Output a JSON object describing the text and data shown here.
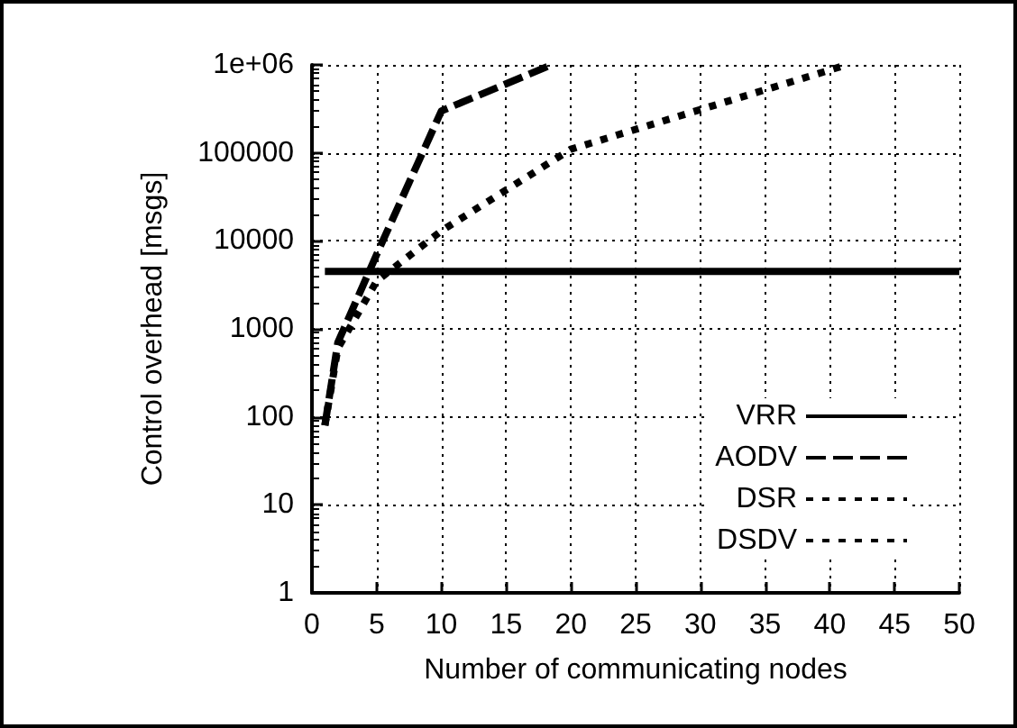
{
  "chart_data": {
    "type": "line",
    "xlabel": "Number of communicating nodes",
    "ylabel": "Control overhead [msgs]",
    "xlim": [
      0,
      50
    ],
    "xticks": [
      0,
      5,
      10,
      15,
      20,
      25,
      30,
      35,
      40,
      45,
      50
    ],
    "ylim": [
      1,
      1000000
    ],
    "yticks": [
      1,
      10,
      100,
      1000,
      10000,
      100000,
      {
        "value": 1000000,
        "label": "1e+06"
      }
    ],
    "log": "y",
    "grid": true,
    "legend": "bottom right",
    "series": [
      {
        "name": "VRR",
        "color": "#000000",
        "line_style": "solid",
        "x": [
          1,
          50
        ],
        "values": [
          4500,
          4500
        ]
      },
      {
        "name": "AODV",
        "color": "#000000",
        "line_style": "dashed",
        "x": [
          1,
          2,
          5,
          10,
          18.5
        ],
        "values": [
          80,
          700,
          7000,
          300000,
          1000000
        ]
      },
      {
        "name": "DSR",
        "color": "#000000",
        "line_style": "dotted",
        "x": [
          1,
          2,
          5,
          10,
          20,
          41.3
        ],
        "values": [
          80,
          600,
          3500,
          13000,
          110000,
          1000000
        ]
      },
      {
        "name": "DSDV",
        "color": "#000000",
        "line_style": "dotted"
      }
    ]
  }
}
